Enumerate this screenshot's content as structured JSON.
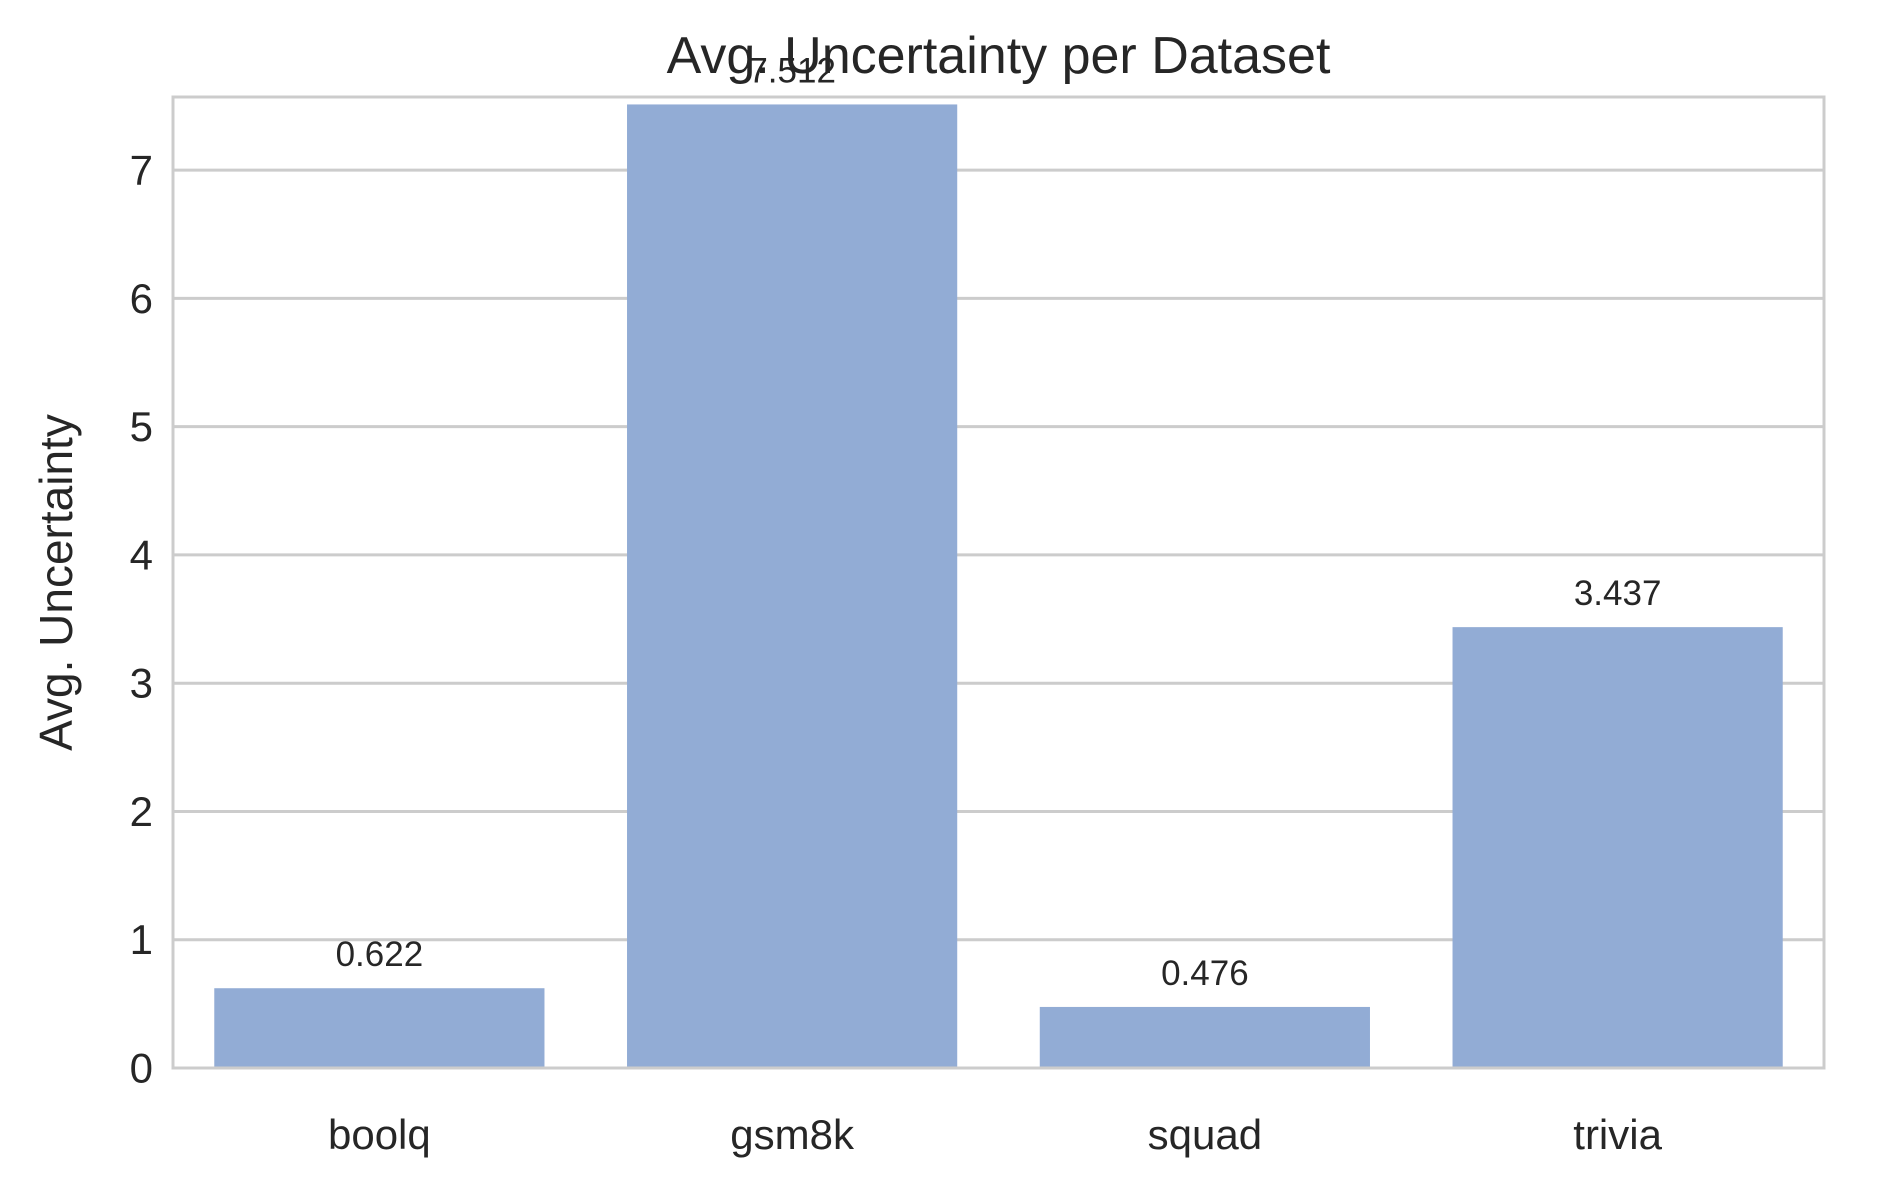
{
  "chart_data": {
    "type": "bar",
    "title": "Avg. Uncertainty per Dataset",
    "xlabel": "",
    "ylabel": "Avg. Uncertainty",
    "categories": [
      "boolq",
      "gsm8k",
      "squad",
      "trivia"
    ],
    "values": [
      0.622,
      7.512,
      0.476,
      3.437
    ],
    "data_labels": [
      "0.622",
      "7.512",
      "0.476",
      "3.437"
    ],
    "ylim": [
      0,
      7.57
    ],
    "yticks": [
      0,
      1,
      2,
      3,
      4,
      5,
      6,
      7
    ],
    "grid": "horizontal",
    "legend": "none",
    "colors": {
      "bar": "#92acd5",
      "grid": "#cccccc",
      "frame": "#cccccc",
      "text": "#262626",
      "background": "#ffffff"
    }
  }
}
